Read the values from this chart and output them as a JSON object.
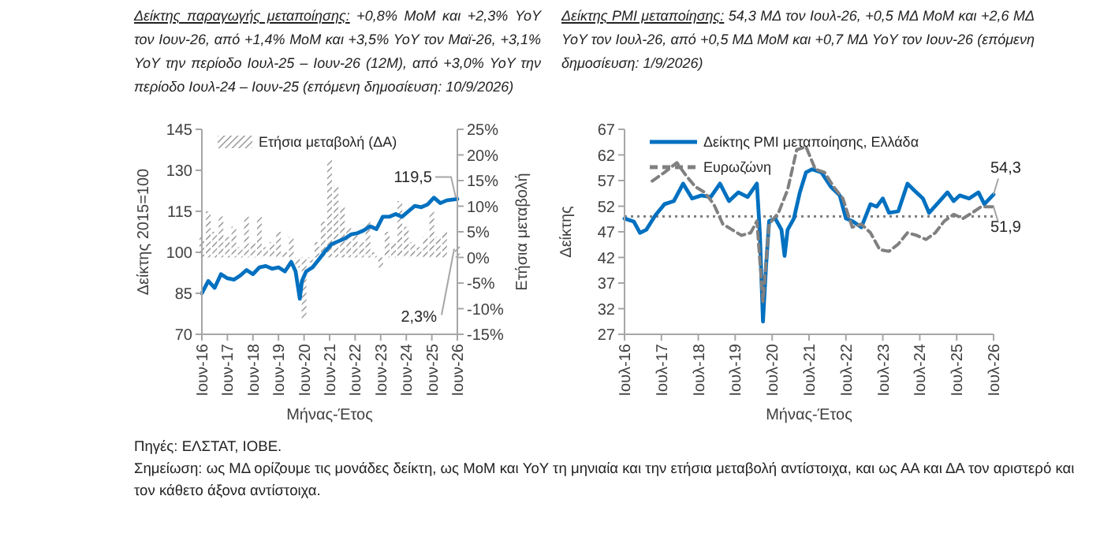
{
  "chart_data": [
    {
      "type": "line",
      "title": "Δείκτης παραγωγής μεταποίησης:",
      "subtitle": "+0,8% MoM και +2,3% YoY τον Ιουν-26, από +1,4% MoM και +3,5% YoY τον Μαϊ-26, +3,1% YoY την περίοδο Ιουλ-25 – Ιουν-26 (12M), από +3,0% YoY την περίοδο Ιουλ-24 – Ιουν-25 (επόμενη δημοσίευση: 10/9/2026)",
      "xlabel": "Μήνας-Έτος",
      "ylabel": "Δείκτης 2015=100",
      "y2label": "Ετήσια μεταβολή",
      "xlim": [
        "2016-06",
        "2026-06"
      ],
      "xticks": [
        {
          "value": "2016-06",
          "label": "Ιουν-16"
        },
        {
          "value": "2017-06",
          "label": "Ιουν-17"
        },
        {
          "value": "2018-06",
          "label": "Ιουν-18"
        },
        {
          "value": "2019-06",
          "label": "Ιουν-19"
        },
        {
          "value": "2020-06",
          "label": "Ιουν-20"
        },
        {
          "value": "2021-06",
          "label": "Ιουν-21"
        },
        {
          "value": "2022-06",
          "label": "Ιουν-22"
        },
        {
          "value": "2023-06",
          "label": "Ιουν-23"
        },
        {
          "value": "2024-06",
          "label": "Ιουν-24"
        },
        {
          "value": "2025-06",
          "label": "Ιουν-25"
        },
        {
          "value": "2026-06",
          "label": "Ιουν-26"
        }
      ],
      "ylim": [
        70,
        145
      ],
      "yticks": [
        70,
        85,
        100,
        115,
        130,
        145
      ],
      "y2lim": [
        -15,
        25
      ],
      "y2ticks": [
        {
          "value": -15,
          "label": "-15%"
        },
        {
          "value": -10,
          "label": "-10%"
        },
        {
          "value": -5,
          "label": "-5%"
        },
        {
          "value": 0,
          "label": "0%"
        },
        {
          "value": 5,
          "label": "5%"
        },
        {
          "value": 10,
          "label": "10%"
        },
        {
          "value": 15,
          "label": "15%"
        },
        {
          "value": 20,
          "label": "20%"
        },
        {
          "value": 25,
          "label": "25%"
        }
      ],
      "legend": "top left",
      "annotations": [
        {
          "text": "119,5",
          "x": "2026-06",
          "y": 119.5
        }
      ],
      "series": [
        {
          "type": "bar",
          "name": "Ετήσια μεταβολή (ΔΑ)",
          "color": "#808080",
          "axis": "y2",
          "x": [
            "2016-06",
            "2016-09",
            "2016-12",
            "2017-03",
            "2017-06",
            "2017-09",
            "2017-12",
            "2018-03",
            "2018-06",
            "2018-09",
            "2018-12",
            "2019-03",
            "2019-06",
            "2019-09",
            "2019-12",
            "2020-03",
            "2020-06",
            "2020-09",
            "2020-12",
            "2021-03",
            "2021-06",
            "2021-09",
            "2021-12",
            "2022-03",
            "2022-06",
            "2022-09",
            "2022-12",
            "2023-03",
            "2023-06",
            "2023-09",
            "2023-12",
            "2024-03",
            "2024-06",
            "2024-09",
            "2024-12",
            "2025-03",
            "2025-06",
            "2025-09",
            "2025-12",
            "2026-06"
          ],
          "values": [
            4,
            9,
            5,
            8,
            4,
            6,
            2,
            8,
            3,
            8,
            2,
            3,
            5,
            1,
            4,
            -2,
            -12,
            -1,
            3,
            7,
            19,
            14,
            10,
            6,
            5,
            3,
            7,
            1,
            -2,
            5,
            3,
            11,
            6,
            3,
            2,
            4,
            9,
            4,
            5,
            2.3
          ],
          "value_labels": [
            null,
            null,
            null,
            null,
            null,
            null,
            null,
            null,
            null,
            null,
            null,
            null,
            null,
            null,
            null,
            null,
            null,
            null,
            null,
            null,
            null,
            null,
            null,
            null,
            null,
            null,
            null,
            null,
            null,
            null,
            null,
            null,
            null,
            null,
            null,
            null,
            null,
            null,
            null,
            "2,3%"
          ]
        },
        {
          "color": "#0070c0",
          "x": [
            "2016-06",
            "2016-09",
            "2016-12",
            "2017-03",
            "2017-06",
            "2017-09",
            "2017-12",
            "2018-03",
            "2018-06",
            "2018-09",
            "2018-12",
            "2019-03",
            "2019-06",
            "2019-09",
            "2019-12",
            "2020-02",
            "2020-04",
            "2020-05",
            "2020-07",
            "2020-10",
            "2021-01",
            "2021-04",
            "2021-07",
            "2021-10",
            "2022-01",
            "2022-04",
            "2022-07",
            "2022-10",
            "2023-01",
            "2023-04",
            "2023-07",
            "2023-10",
            "2024-01",
            "2024-04",
            "2024-07",
            "2024-10",
            "2025-01",
            "2025-04",
            "2025-07",
            "2025-10",
            "2026-01",
            "2026-06"
          ],
          "values": [
            85,
            89.5,
            87,
            92,
            90.5,
            90,
            91.5,
            93.5,
            92,
            94.5,
            95,
            94,
            94.5,
            93,
            96.5,
            93,
            83,
            89.5,
            93,
            94.5,
            97.5,
            100.5,
            103,
            104,
            105,
            106.5,
            107,
            108,
            109.5,
            108.5,
            113,
            113,
            114,
            113,
            115,
            117,
            116.5,
            117.5,
            120,
            118,
            119,
            119.5
          ]
        }
      ]
    },
    {
      "type": "line",
      "title": "Δείκτης PMI μεταποίησης:",
      "subtitle": "54,3 ΜΔ τον Ιουλ-26, +0,5 ΜΔ MoM και +2,6 ΜΔ YoY τον Ιουλ-26, από +0,5 ΜΔ MoM και +0,7 ΜΔ YoY τον Ιουν-26 (επόμενη δημοσίευση: 1/9/2026)",
      "xlabel": "Μήνας-Έτος",
      "ylabel": "Δείκτης",
      "xlim": [
        "2016-07",
        "2026-07"
      ],
      "xticks": [
        {
          "value": "2016-07",
          "label": "Ιουλ-16"
        },
        {
          "value": "2017-07",
          "label": "Ιουλ-17"
        },
        {
          "value": "2018-07",
          "label": "Ιουλ-18"
        },
        {
          "value": "2019-07",
          "label": "Ιουλ-19"
        },
        {
          "value": "2020-07",
          "label": "Ιουλ-20"
        },
        {
          "value": "2021-07",
          "label": "Ιουλ-21"
        },
        {
          "value": "2022-07",
          "label": "Ιουλ-22"
        },
        {
          "value": "2023-07",
          "label": "Ιουλ-23"
        },
        {
          "value": "2024-07",
          "label": "Ιουλ-24"
        },
        {
          "value": "2025-07",
          "label": "Ιουλ-25"
        },
        {
          "value": "2026-07",
          "label": "Ιουλ-26"
        }
      ],
      "ylim": [
        27,
        67
      ],
      "yticks": [
        27,
        32,
        37,
        42,
        47,
        52,
        57,
        62,
        67
      ],
      "legend": "top",
      "ref_lines": [
        {
          "axis": "y",
          "value": 50,
          "color": "#808080",
          "line_style": "dotted"
        }
      ],
      "annotations": [
        {
          "text": "54,3",
          "x": "2026-07",
          "y": 54.3
        },
        {
          "text": "51,9",
          "x": "2026-07",
          "y": 51.9
        },
        "Πηγές: ΕΛΣΤΑΤ, IOBE.",
        "Σημείωση: ως ΜΔ ορίζουμε τις μονάδες δείκτη, ως MoM και YoY τη μηνιαία και την ετήσια μεταβολή αντίστοιχα, και ως ΑΑ και ΔΑ τον αριστερό και τον κάθετο άξονα αντίστοιχα."
      ],
      "series": [
        {
          "name": "Δείκτης PMI μεταποίησης, Ελλάδα",
          "color": "#0070c0",
          "line_style": "solid",
          "x": [
            "2016-07",
            "2016-10",
            "2016-12",
            "2017-02",
            "2017-05",
            "2017-08",
            "2017-11",
            "2018-02",
            "2018-05",
            "2018-08",
            "2018-11",
            "2019-02",
            "2019-05",
            "2019-08",
            "2019-11",
            "2020-02",
            "2020-03",
            "2020-04",
            "2020-05",
            "2020-06",
            "2020-08",
            "2020-10",
            "2020-11",
            "2020-12",
            "2021-02",
            "2021-04",
            "2021-06",
            "2021-08",
            "2021-11",
            "2022-02",
            "2022-05",
            "2022-07",
            "2022-09",
            "2022-12",
            "2023-03",
            "2023-05",
            "2023-07",
            "2023-09",
            "2023-12",
            "2024-03",
            "2024-05",
            "2024-08",
            "2024-10",
            "2025-01",
            "2025-04",
            "2025-06",
            "2025-08",
            "2025-11",
            "2026-02",
            "2026-04",
            "2026-07"
          ],
          "values": [
            49.6,
            49,
            46.8,
            47.4,
            50.2,
            52.4,
            53,
            56.4,
            53.5,
            54.1,
            53.8,
            56.4,
            53,
            54.7,
            53.8,
            56.4,
            46.8,
            29.5,
            40.1,
            49.1,
            49.6,
            47.4,
            42.3,
            47.4,
            49.6,
            54.7,
            58.6,
            59.2,
            58.6,
            55.8,
            54.1,
            49.6,
            49.1,
            47.9,
            52.4,
            51.9,
            53.5,
            50.7,
            51,
            56.4,
            55.2,
            53.5,
            50.7,
            52.7,
            54.7,
            53,
            54.1,
            53.5,
            54.7,
            52.4,
            54.3
          ]
        },
        {
          "name": "Ευρωζώνη",
          "color": "#808080",
          "line_style": "dashed",
          "x": [
            "2017-04",
            "2017-08",
            "2017-12",
            "2018-03",
            "2018-06",
            "2018-09",
            "2018-12",
            "2019-03",
            "2019-06",
            "2019-09",
            "2019-12",
            "2020-02",
            "2020-04",
            "2020-06",
            "2020-09",
            "2020-12",
            "2021-03",
            "2021-06",
            "2021-09",
            "2021-12",
            "2022-03",
            "2022-06",
            "2022-09",
            "2022-12",
            "2023-03",
            "2023-06",
            "2023-09",
            "2023-12",
            "2024-03",
            "2024-06",
            "2024-09",
            "2024-12",
            "2025-03",
            "2025-06",
            "2025-09",
            "2025-12",
            "2026-03",
            "2026-07"
          ],
          "values": [
            56.9,
            58.6,
            60.5,
            58,
            55.8,
            54.7,
            52.4,
            48.5,
            47.4,
            46.3,
            46.8,
            49.1,
            33.4,
            48.5,
            50.7,
            55.2,
            63,
            63.6,
            59.2,
            58.6,
            55.8,
            53.5,
            47.9,
            48.5,
            46.8,
            43.5,
            43.2,
            44.6,
            46.8,
            46.3,
            45.5,
            46.8,
            49.1,
            50.4,
            49.6,
            50.7,
            51.9,
            51.9
          ]
        }
      ]
    }
  ]
}
